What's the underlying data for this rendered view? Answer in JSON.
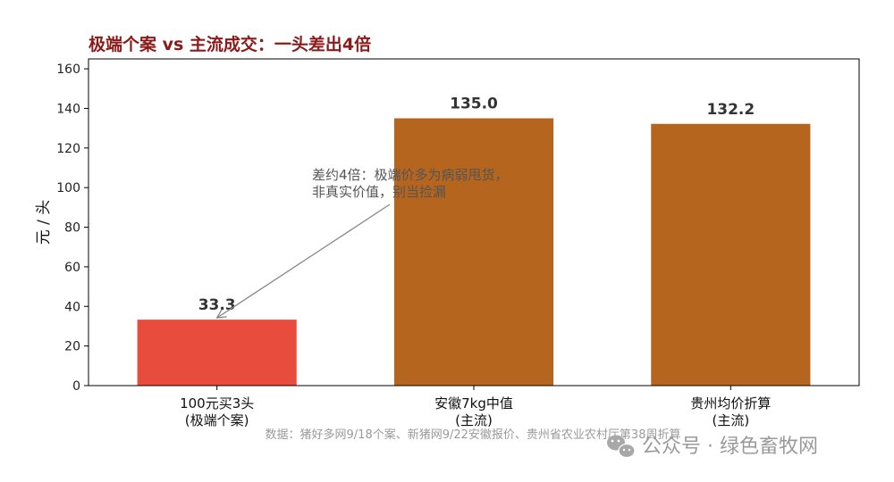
{
  "chart_data": {
    "type": "bar",
    "title": "极端个案 vs 主流成交：一头差出4倍",
    "ylabel": "元 / 头",
    "xlabel": "",
    "ylim": [
      0,
      165
    ],
    "yticks": [
      0,
      20,
      40,
      60,
      80,
      100,
      120,
      140,
      160
    ],
    "categories": [
      [
        "100元买3头",
        "(极端个案)"
      ],
      [
        "安徽7kg中值",
        "(主流)"
      ],
      [
        "贵州均价折算",
        "(主流)"
      ]
    ],
    "values": [
      33.3,
      135.0,
      132.2
    ],
    "value_labels": [
      "33.3",
      "135.0",
      "132.2"
    ],
    "bar_colors": [
      "#e74c3c",
      "#b5651d",
      "#b5651d"
    ],
    "grid": false,
    "annotation": {
      "lines": [
        "差约4倍：极端价多为病弱甩货，",
        "非真实价值，别当捡漏"
      ],
      "target_category_index": 0,
      "target_value": 33.3,
      "arrow_color": "#888888"
    },
    "source": "数据：猪好多网9/18个案、新猪网9/22安徽报价、贵州省农业农村厅第38周折算"
  },
  "watermark": {
    "icon": "wechat-icon",
    "text": "公众号 · 绿色畜牧网"
  }
}
